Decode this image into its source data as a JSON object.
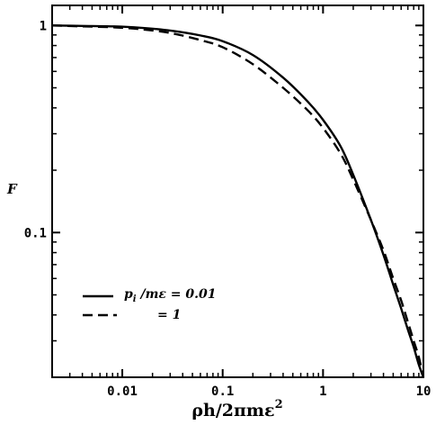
{
  "chart_data": {
    "type": "line",
    "title": "",
    "xlabel": "ρh/2πmε",
    "xlabel_superscript": "2",
    "ylabel": "F",
    "x_scale": "log",
    "y_scale": "log",
    "xlim": [
      0.002,
      10
    ],
    "ylim": [
      0.02,
      1.25
    ],
    "x_ticks": [
      {
        "value": 0.01,
        "label": "0.01"
      },
      {
        "value": 0.1,
        "label": "0.1"
      },
      {
        "value": 1,
        "label": "1"
      },
      {
        "value": 10,
        "label": "10"
      }
    ],
    "y_ticks": [
      {
        "value": 0.1,
        "label": "0.1"
      },
      {
        "value": 1,
        "label": "1"
      }
    ],
    "grid": false,
    "legend_position": "bottom-left",
    "series": [
      {
        "name": "p_i /mε = 0.01",
        "legend_main": "p",
        "legend_sub": "i",
        "legend_rest": " /mε = 0.01",
        "dash": "solid",
        "x": [
          0.002,
          0.004,
          0.008,
          0.015,
          0.03,
          0.06,
          0.1,
          0.2,
          0.4,
          0.7,
          1.0,
          1.5,
          2.0,
          3.0,
          4.0,
          5.0,
          6.0,
          7.0,
          8.0,
          9.0,
          10.0
        ],
        "y": [
          1.0,
          0.995,
          0.99,
          0.975,
          0.945,
          0.895,
          0.84,
          0.72,
          0.56,
          0.43,
          0.35,
          0.26,
          0.19,
          0.115,
          0.078,
          0.056,
          0.043,
          0.034,
          0.028,
          0.023,
          0.02
        ]
      },
      {
        "name": "= 1",
        "legend_main": "",
        "legend_sub": "",
        "legend_rest": "= 1",
        "dash": "dashed",
        "x": [
          0.002,
          0.004,
          0.008,
          0.015,
          0.03,
          0.06,
          0.1,
          0.2,
          0.4,
          0.7,
          1.0,
          1.5,
          2.0,
          3.0,
          4.0,
          5.0,
          6.0,
          7.0,
          8.0,
          9.0,
          10.0
        ],
        "y": [
          1.0,
          0.99,
          0.98,
          0.96,
          0.92,
          0.85,
          0.785,
          0.65,
          0.5,
          0.39,
          0.32,
          0.24,
          0.18,
          0.115,
          0.082,
          0.06,
          0.047,
          0.037,
          0.03,
          0.025,
          0.02
        ]
      }
    ]
  }
}
